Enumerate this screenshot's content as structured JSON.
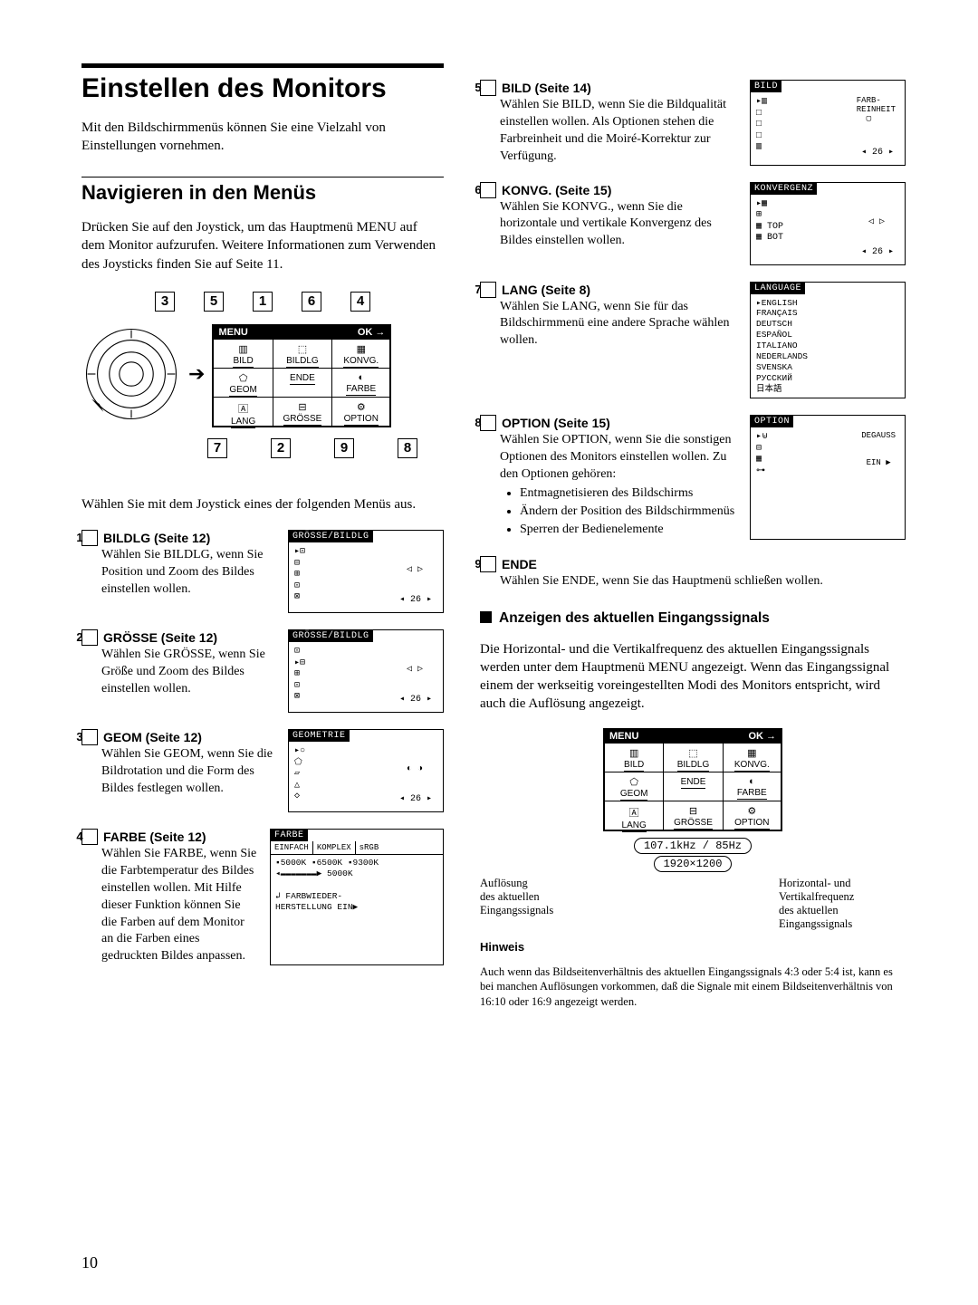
{
  "title": "Einstellen des Monitors",
  "intro": "Mit den Bildschirmmenüs können Sie eine Vielzahl von Einstellungen vornehmen.",
  "nav_title": "Navigieren in den Menüs",
  "nav_para": "Drücken Sie auf den Joystick, um das Hauptmenü MENU auf dem Monitor aufzurufen. Weitere Informationen zum Verwenden des Joysticks finden Sie auf Seite 11.",
  "pick_para": "Wählen Sie mit dem Joystick eines der folgenden Menüs aus.",
  "menu_box": {
    "head_left": "MENU",
    "head_right": "OK →",
    "cells": [
      {
        "icon": "▥",
        "label": "BILD"
      },
      {
        "icon": "⬚",
        "label": "BILDLG"
      },
      {
        "icon": "▦",
        "label": "KONVG."
      },
      {
        "icon": "⬠",
        "label": "GEOM"
      },
      {
        "icon": "",
        "label": "ENDE"
      },
      {
        "icon": "◐",
        "label": "FARBE"
      },
      {
        "icon": "🄰",
        "label": "LANG"
      },
      {
        "icon": "⊟",
        "label": "GRÖSSE"
      },
      {
        "icon": "⚙",
        "label": "OPTION"
      }
    ],
    "top_nums": [
      "3",
      "5",
      "1",
      "6",
      "4"
    ],
    "bot_nums": [
      "7",
      "2",
      "9",
      "8"
    ]
  },
  "items": [
    {
      "num": "1",
      "title": "BILDLG (Seite 12)",
      "body": "Wählen Sie BILDLG, wenn Sie Position und Zoom des Bildes einstellen wollen.",
      "osd": {
        "title": "GRÖSSE/BILDLG",
        "icons": [
          "▸⊡",
          "⊟",
          "⊞",
          "⊡",
          "⊠"
        ],
        "num": "26",
        "mid": "◁  ▷"
      }
    },
    {
      "num": "2",
      "title": "GRÖSSE (Seite 12)",
      "body": "Wählen Sie GRÖSSE, wenn Sie Größe und Zoom des Bildes einstellen wollen.",
      "osd": {
        "title": "GRÖSSE/BILDLG",
        "icons": [
          "⊡",
          "▸⊟",
          "⊞",
          "⊡",
          "⊠"
        ],
        "num": "26",
        "mid": "◁  ▷"
      }
    },
    {
      "num": "3",
      "title": "GEOM (Seite 12)",
      "body": "Wählen Sie GEOM, wenn Sie die Bildrotation und die Form des Bildes festlegen wollen.",
      "osd": {
        "title": "GEOMETRIE",
        "icons": [
          "▸○",
          "⬠",
          "▱",
          "△",
          "◇"
        ],
        "num": "26",
        "mid": "◐  ◑"
      }
    },
    {
      "num": "4",
      "title": "FARBE (Seite 12)",
      "body": "Wählen Sie FARBE, wenn Sie die Farbtemperatur des Bildes einstellen wollen. Mit Hilfe dieser Funktion können Sie die Farben auf dem Monitor an die Farben eines gedruckten Bildes anpassen.",
      "farbe": true
    },
    {
      "num": "5",
      "title": "BILD (Seite 14)",
      "body": "Wählen Sie BILD, wenn Sie die Bildqualität einstellen wollen. Als Optionen stehen die Farbreinheit und die Moiré-Korrektur zur Verfügung.",
      "osd": {
        "title": "BILD",
        "icons": [
          "▸▥",
          "□",
          "□",
          "□",
          "▥"
        ],
        "num": "26",
        "text": "FARB-\nREINHEIT\n  ▢"
      }
    },
    {
      "num": "6",
      "title": "KONVG. (Seite 15)",
      "body": "Wählen Sie KONVG., wenn Sie die horizontale und vertikale Konvergenz des Bildes einstellen wollen.",
      "osd": {
        "title": "KONVERGENZ",
        "icons": [
          "▸▦",
          "⊞",
          "▦ TOP",
          "▦ BOT"
        ],
        "num": "26",
        "mid": "◁  ▷"
      }
    },
    {
      "num": "7",
      "title": "LANG (Seite 8)",
      "body": "Wählen Sie LANG, wenn Sie für das Bildschirmmenü eine andere Sprache wählen wollen.",
      "lang": true
    },
    {
      "num": "8",
      "title": "OPTION (Seite 15)",
      "body": "Wählen Sie OPTION, wenn Sie die sonstigen Optionen des Monitors einstellen wollen. Zu den Optionen gehören:",
      "osd": {
        "title": "OPTION",
        "icons": [
          "▸⊌",
          "⊟",
          "▦",
          "⊶"
        ],
        "text": "DEGAUSS\n\n\n EIN ▶"
      },
      "bullets": [
        "Entmagnetisieren des Bildschirms",
        "Ändern der Position des Bildschirmmenüs",
        "Sperren der Bedienelemente"
      ]
    },
    {
      "num": "9",
      "title": "ENDE",
      "body": "Wählen Sie ENDE, wenn Sie das Hauptmenü schließen wollen."
    }
  ],
  "lang_list": [
    "▸ENGLISH",
    "FRANÇAIS",
    "DEUTSCH",
    "ESPAÑOL",
    "ITALIANO",
    "NEDERLANDS",
    "SVENSKA",
    "РУССКИЙ",
    "日本語"
  ],
  "farbe_osd": {
    "title": "FARBE",
    "tabs": [
      "EINFACH",
      "KOMPLEX",
      "sRGB"
    ],
    "row1": "▪5000K ▪6500K ▪9300K",
    "row2": "◂▬▬▬▬▬▬▬▶     5000K",
    "row3": "↲  FARBWIEDER-",
    "row4": "   HERSTELLUNG   EIN▶"
  },
  "signal": {
    "title": "Anzeigen des aktuellen Eingangssignals",
    "para": "Die Horizontal- und die Vertikalfrequenz des aktuellen Eingangssignals werden unter dem Hauptmenü MENU angezeigt. Wenn das Eingangssignal einem der werkseitig voreingestellten Modi des Monitors entspricht, wird auch die Auflösung angezeigt.",
    "freq": "107.1kHz /  85Hz",
    "res": "1920×1200",
    "left_label": "Auflösung\ndes aktuellen\nEingangssignals",
    "right_label": "Horizontal- und\nVertikalfrequenz\ndes aktuellen\nEingangssignals"
  },
  "hinweis": {
    "title": "Hinweis",
    "body": "Auch wenn das Bildseitenverhältnis des aktuellen Eingangssignals 4:3 oder 5:4 ist, kann es bei manchen Auflösungen vorkommen, daß die Signale mit einem Bildseitenverhältnis von 16:10 oder 16:9 angezeigt werden."
  },
  "page_num": "10"
}
